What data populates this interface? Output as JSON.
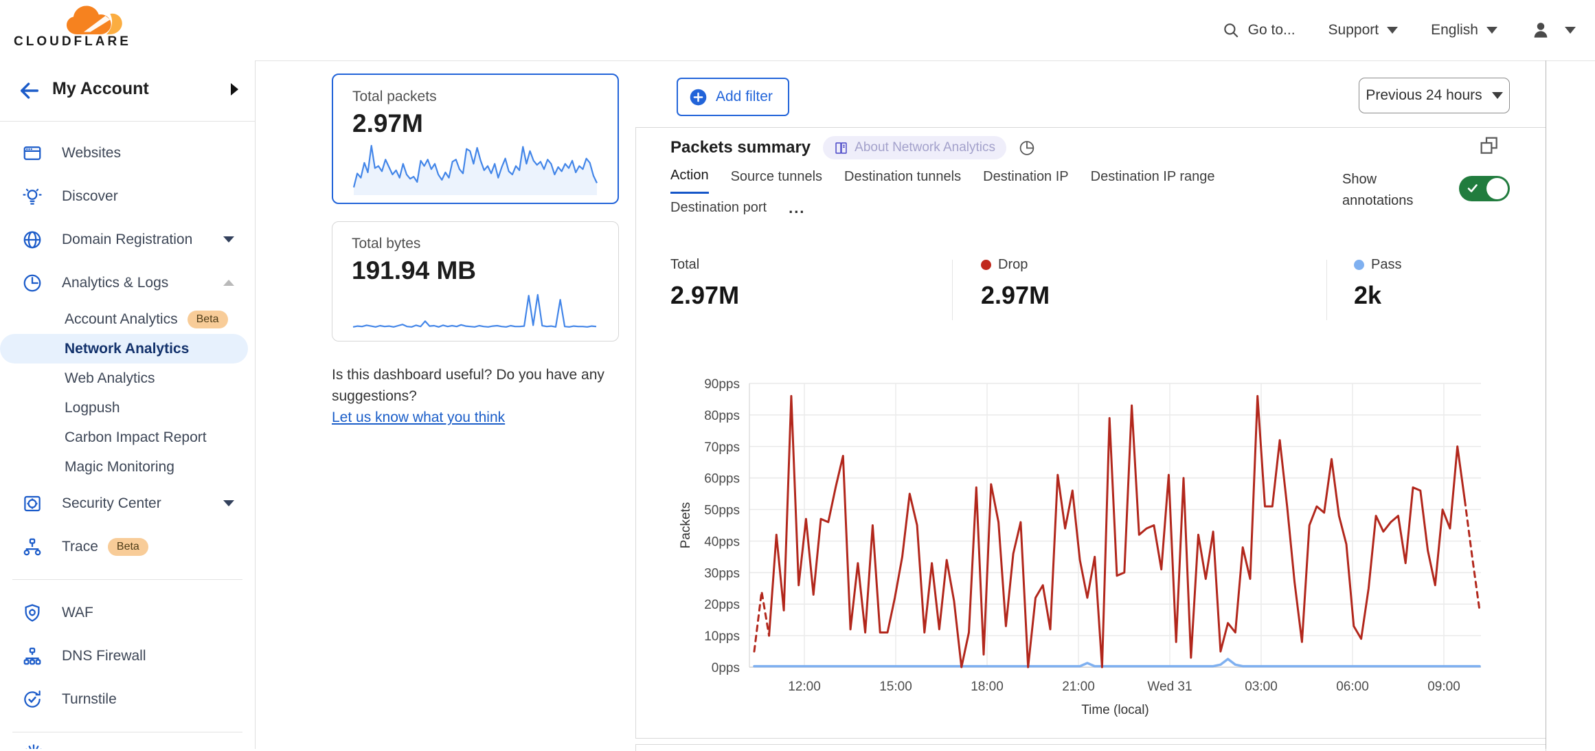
{
  "header": {
    "logo_text": "CLOUDFLARE",
    "goto_label": "Go to...",
    "support_label": "Support",
    "language_label": "English"
  },
  "sidebar": {
    "account_label": "My Account",
    "nav": [
      {
        "label": "Websites"
      },
      {
        "label": "Discover"
      },
      {
        "label": "Domain Registration"
      },
      {
        "label": "Analytics & Logs"
      }
    ],
    "analytics_children": [
      {
        "label": "Account Analytics",
        "badge": "Beta"
      },
      {
        "label": "Network Analytics"
      },
      {
        "label": "Web Analytics"
      },
      {
        "label": "Logpush"
      },
      {
        "label": "Carbon Impact Report"
      },
      {
        "label": "Magic Monitoring"
      }
    ],
    "nav2": [
      {
        "label": "Security Center"
      },
      {
        "label": "Trace",
        "badge": "Beta"
      }
    ],
    "nav3": [
      {
        "label": "WAF"
      },
      {
        "label": "DNS Firewall"
      },
      {
        "label": "Turnstile"
      }
    ]
  },
  "cards": {
    "total_packets": {
      "title": "Total packets",
      "value": "2.97M"
    },
    "total_bytes": {
      "title": "Total bytes",
      "value": "191.94 MB"
    },
    "feedback_text": "Is this dashboard useful? Do you have any suggestions?",
    "feedback_link": "Let us know what you think"
  },
  "main": {
    "add_filter_label": "Add filter",
    "time_range_label": "Previous 24 hours",
    "panel": {
      "title": "Packets summary",
      "about_chip": "About Network Analytics",
      "tabs": [
        {
          "label": "Action"
        },
        {
          "label": "Source tunnels"
        },
        {
          "label": "Destination tunnels"
        },
        {
          "label": "Destination IP"
        },
        {
          "label": "Destination IP range"
        },
        {
          "label": "Destination port"
        }
      ],
      "active_tab": "Action",
      "tabs_overflow": "...",
      "show_annotations_label": "Show annotations",
      "annotations_on": true,
      "stats": [
        {
          "label": "Total",
          "value": "2.97M"
        },
        {
          "label": "Drop",
          "value": "2.97M",
          "dot_color": "#c0281c"
        },
        {
          "label": "Pass",
          "value": "2k",
          "dot_color": "#7fb0f0"
        }
      ]
    }
  },
  "colors": {
    "accent_blue": "#2264d9",
    "link_blue": "#1a5dc8",
    "icon_blue": "#1b5bc9",
    "drop_red": "#b2271c",
    "pass_blue": "#7fb0f0",
    "toggle_green": "#217c3e",
    "selected_item_bg": "#e7f1fd",
    "beta_badge_bg": "#f8cc98"
  },
  "chart_data": {
    "type": "line",
    "title": "Packets summary",
    "xlabel": "Time (local)",
    "ylabel": "Packets",
    "ylim": [
      0,
      90
    ],
    "grid": true,
    "yticks": [
      "0pps",
      "10pps",
      "20pps",
      "30pps",
      "40pps",
      "50pps",
      "60pps",
      "70pps",
      "80pps",
      "90pps"
    ],
    "xticks": [
      "12:00",
      "15:00",
      "18:00",
      "21:00",
      "Wed 31",
      "03:00",
      "06:00",
      "09:00"
    ],
    "x_window": "previous 24 hours, ~15 minute buckets",
    "series": [
      {
        "name": "Drop",
        "color": "#b2271c",
        "dashed_head": 2,
        "dashed_tail": 2,
        "values": [
          5,
          24,
          10,
          42,
          18,
          86,
          26,
          47,
          23,
          47,
          46,
          57,
          67,
          12,
          33,
          11,
          45,
          11,
          11,
          22,
          35,
          55,
          45,
          11,
          33,
          12,
          34,
          21,
          0,
          11,
          57,
          4,
          58,
          46,
          13,
          36,
          46,
          0,
          22,
          26,
          12,
          61,
          44,
          56,
          34,
          22,
          35,
          0,
          79,
          29,
          30,
          83,
          42,
          44,
          45,
          31,
          61,
          8,
          60,
          3,
          42,
          28,
          43,
          5,
          14,
          11,
          38,
          28,
          86,
          51,
          51,
          72,
          51,
          27,
          8,
          45,
          51,
          49,
          66,
          48,
          39,
          13,
          9,
          25,
          48,
          43,
          46,
          48,
          33,
          57,
          56,
          37,
          26,
          50,
          44,
          70,
          53,
          35,
          18
        ]
      },
      {
        "name": "Pass",
        "color": "#7fb0f0",
        "baseline": 0.3,
        "length": 99,
        "bumps": {
          "45": 1.3,
          "63": 0.8,
          "64": 2.6,
          "65": 0.8
        }
      }
    ],
    "sparklines": {
      "total_packets": {
        "color": "#4285e8",
        "values": [
          12,
          38,
          30,
          58,
          40,
          90,
          48,
          52,
          42,
          64,
          50,
          36,
          44,
          30,
          56,
          36,
          28,
          32,
          22,
          62,
          52,
          64,
          46,
          56,
          36,
          26,
          40,
          30,
          60,
          64,
          46,
          38,
          84,
          80,
          56,
          86,
          62,
          44,
          52,
          38,
          56,
          30,
          50,
          66,
          42,
          36,
          52,
          44,
          88,
          56,
          80,
          62,
          54,
          60,
          46,
          64,
          56,
          36,
          50,
          42,
          56,
          48,
          62,
          40,
          52,
          46,
          66,
          58,
          34,
          20
        ]
      },
      "total_bytes": {
        "color": "#4285e8",
        "values": [
          12,
          14,
          13,
          16,
          14,
          12,
          15,
          13,
          14,
          12,
          15,
          18,
          13,
          12,
          16,
          13,
          26,
          14,
          15,
          12,
          16,
          13,
          15,
          13,
          17,
          14,
          13,
          12,
          15,
          13,
          12,
          14,
          15,
          13,
          12,
          15,
          13,
          13,
          14,
          88,
          16,
          90,
          15,
          13,
          14,
          12,
          78,
          13,
          12,
          14,
          13,
          13,
          12,
          14,
          13
        ]
      }
    }
  }
}
